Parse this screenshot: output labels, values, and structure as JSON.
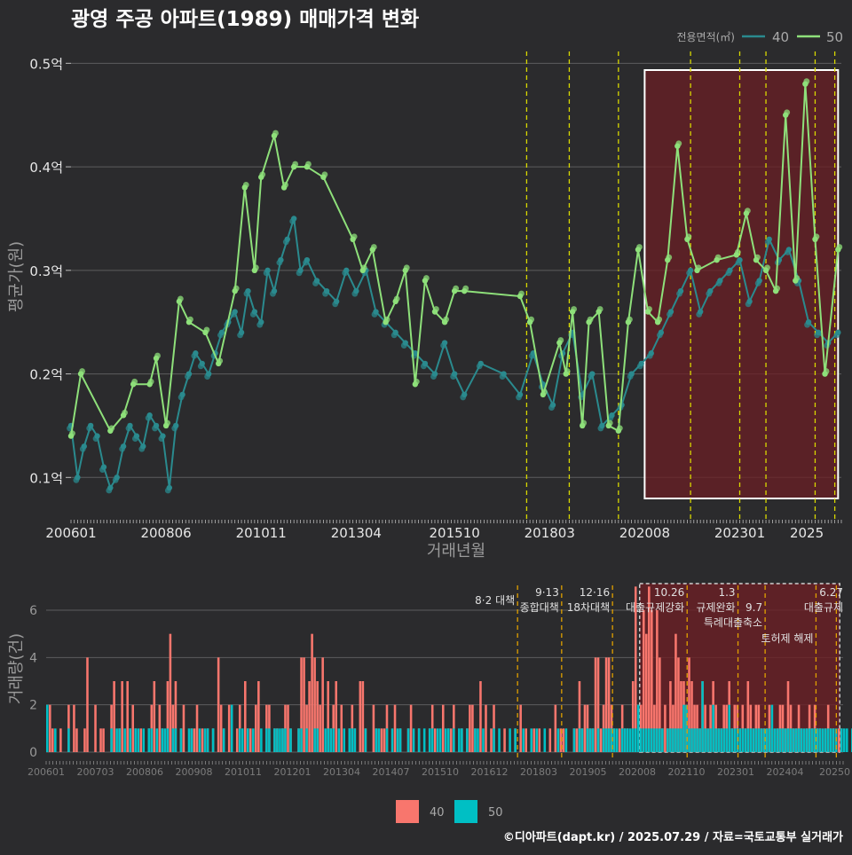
{
  "title": "광영 주공 아파트(1989) 매매가격 변화",
  "footer": "©디아파트(dapt.kr) / 2025.07.29 / 자료=국토교통부 실거래가",
  "colors": {
    "background": "#2b2b2d",
    "series_40": "#2a8a8e",
    "series_50": "#8ee07a",
    "bar_40": "#f8766d",
    "bar_50": "#00bfc4",
    "policy_line": "#d8d800",
    "policy_line_bottom": "#e0a000",
    "highlight_fill": "#6b1f24",
    "highlight_border": "#ffffff"
  },
  "chart_data": [
    {
      "id": "price",
      "type": "line",
      "title": "광영 주공 아파트(1989) 매매가격 변화",
      "xlabel": "거래년월",
      "ylabel": "평균가(원)",
      "legend": {
        "title": "전용면적(㎡)",
        "position": "top-right",
        "items": [
          "40",
          "50"
        ]
      },
      "x_ticks": [
        "200601",
        "200806",
        "201011",
        "201304",
        "201510",
        "201803",
        "202008",
        "202301",
        "2025"
      ],
      "y_ticks": [
        "0.1억",
        "0.2억",
        "0.3억",
        "0.4억",
        "0.5억"
      ],
      "y_tick_values": [
        0.1,
        0.2,
        0.3,
        0.4,
        0.5
      ],
      "ylim": [
        0.06,
        0.52
      ],
      "xlim": [
        "2006-01",
        "2025-08"
      ],
      "grid": true,
      "policy_dates": [
        "2017-08",
        "2018-09",
        "2019-12",
        "2021-10",
        "2023-01",
        "2023-09",
        "2024-12",
        "2025-06"
      ],
      "highlight_range": [
        "2020-08",
        "2025-07"
      ],
      "series": [
        {
          "name": "40",
          "x": [
            "2006-01",
            "2006-03",
            "2006-05",
            "2006-07",
            "2006-09",
            "2006-11",
            "2007-01",
            "2007-03",
            "2007-05",
            "2007-07",
            "2007-09",
            "2007-11",
            "2008-01",
            "2008-03",
            "2008-05",
            "2008-07",
            "2008-09",
            "2008-11",
            "2009-01",
            "2009-03",
            "2009-05",
            "2009-07",
            "2009-09",
            "2009-11",
            "2010-01",
            "2010-03",
            "2010-05",
            "2010-07",
            "2010-09",
            "2010-11",
            "2011-01",
            "2011-03",
            "2011-05",
            "2011-07",
            "2011-09",
            "2011-11",
            "2012-01",
            "2012-04",
            "2012-07",
            "2012-10",
            "2013-01",
            "2013-04",
            "2013-07",
            "2013-10",
            "2014-01",
            "2014-04",
            "2014-07",
            "2014-10",
            "2015-01",
            "2015-04",
            "2015-07",
            "2015-10",
            "2016-01",
            "2016-06",
            "2017-01",
            "2017-06",
            "2017-10",
            "2018-01",
            "2018-04",
            "2018-07",
            "2018-10",
            "2019-01",
            "2019-04",
            "2019-07",
            "2019-10",
            "2020-01",
            "2020-04",
            "2020-07",
            "2020-10",
            "2021-01",
            "2021-04",
            "2021-07",
            "2021-10",
            "2022-01",
            "2022-04",
            "2022-07",
            "2022-10",
            "2023-01",
            "2023-04",
            "2023-07",
            "2023-10",
            "2024-01",
            "2024-04",
            "2024-07",
            "2024-10",
            "2025-01",
            "2025-04",
            "2025-07"
          ],
          "values": [
            0.15,
            0.1,
            0.13,
            0.15,
            0.14,
            0.11,
            0.09,
            0.1,
            0.13,
            0.15,
            0.14,
            0.13,
            0.16,
            0.15,
            0.14,
            0.09,
            0.15,
            0.18,
            0.2,
            0.22,
            0.21,
            0.2,
            0.22,
            0.24,
            0.25,
            0.26,
            0.24,
            0.28,
            0.26,
            0.25,
            0.3,
            0.28,
            0.31,
            0.33,
            0.35,
            0.3,
            0.31,
            0.29,
            0.28,
            0.27,
            0.3,
            0.28,
            0.3,
            0.26,
            0.25,
            0.24,
            0.23,
            0.22,
            0.21,
            0.2,
            0.23,
            0.2,
            0.18,
            0.21,
            0.2,
            0.18,
            0.22,
            0.19,
            0.17,
            0.22,
            0.24,
            0.18,
            0.2,
            0.15,
            0.16,
            0.17,
            0.2,
            0.21,
            0.22,
            0.24,
            0.26,
            0.28,
            0.3,
            0.26,
            0.28,
            0.29,
            0.3,
            0.31,
            0.27,
            0.29,
            0.33,
            0.31,
            0.32,
            0.29,
            0.25,
            0.24,
            0.23,
            0.24
          ]
        },
        {
          "name": "50",
          "x": [
            "2006-01",
            "2006-04",
            "2007-01",
            "2007-05",
            "2007-08",
            "2008-01",
            "2008-03",
            "2008-06",
            "2008-10",
            "2009-01",
            "2009-06",
            "2009-10",
            "2010-03",
            "2010-06",
            "2010-09",
            "2010-11",
            "2011-03",
            "2011-06",
            "2011-09",
            "2012-01",
            "2012-06",
            "2013-03",
            "2013-06",
            "2013-09",
            "2014-01",
            "2014-04",
            "2014-07",
            "2014-10",
            "2015-01",
            "2015-04",
            "2015-07",
            "2015-10",
            "2016-01",
            "2017-06",
            "2017-09",
            "2018-01",
            "2018-06",
            "2018-08",
            "2018-10",
            "2019-01",
            "2019-03",
            "2019-06",
            "2019-09",
            "2019-12",
            "2020-03",
            "2020-06",
            "2020-09",
            "2020-12",
            "2021-03",
            "2021-06",
            "2021-09",
            "2021-12",
            "2022-06",
            "2022-12",
            "2023-03",
            "2023-06",
            "2023-09",
            "2023-12",
            "2024-03",
            "2024-06",
            "2024-09",
            "2024-12",
            "2025-03",
            "2025-07"
          ],
          "values": [
            0.14,
            0.2,
            0.145,
            0.16,
            0.19,
            0.19,
            0.215,
            0.15,
            0.27,
            0.25,
            0.24,
            0.21,
            0.28,
            0.38,
            0.3,
            0.39,
            0.43,
            0.38,
            0.4,
            0.4,
            0.39,
            0.33,
            0.3,
            0.32,
            0.25,
            0.27,
            0.3,
            0.19,
            0.29,
            0.26,
            0.25,
            0.28,
            0.28,
            0.275,
            0.25,
            0.18,
            0.23,
            0.2,
            0.26,
            0.15,
            0.25,
            0.26,
            0.15,
            0.145,
            0.25,
            0.32,
            0.26,
            0.25,
            0.31,
            0.42,
            0.33,
            0.3,
            0.31,
            0.315,
            0.355,
            0.31,
            0.3,
            0.28,
            0.45,
            0.29,
            0.48,
            0.33,
            0.2,
            0.32
          ]
        }
      ]
    },
    {
      "id": "volume",
      "type": "bar",
      "ylabel": "거래량(건)",
      "y_ticks": [
        "0",
        "2",
        "4",
        "6"
      ],
      "y_tick_values": [
        0,
        2,
        4,
        6
      ],
      "ylim": [
        -0.3,
        7.2
      ],
      "x_ticks": [
        "200601",
        "200703",
        "200806",
        "200908",
        "201011",
        "201201",
        "201304",
        "201407",
        "201510",
        "201612",
        "201803",
        "201905",
        "202008",
        "202110",
        "202301",
        "202404",
        "20250"
      ],
      "highlight_range": [
        "2020-08",
        "2025-07"
      ],
      "legend": {
        "position": "bottom",
        "items": [
          "40",
          "50"
        ]
      },
      "series": [
        {
          "name": "40",
          "values": [
            0,
            2,
            1,
            0,
            0,
            1,
            0,
            0,
            2,
            0,
            2,
            1,
            0,
            0,
            1,
            4,
            0,
            0,
            2,
            0,
            1,
            1,
            0,
            0,
            2,
            3,
            0,
            1,
            3,
            0,
            3,
            1,
            2,
            1,
            0,
            1,
            0,
            0,
            1,
            2,
            3,
            0,
            2,
            1,
            0,
            3,
            5,
            2,
            3,
            0,
            1,
            2,
            0,
            0,
            1,
            1,
            2,
            0,
            1,
            0,
            1,
            0,
            1,
            0,
            4,
            2,
            1,
            0,
            2,
            0,
            0,
            1,
            2,
            0,
            3,
            1,
            1,
            0,
            2,
            3,
            0,
            0,
            2,
            2,
            0,
            1,
            1,
            0,
            1,
            2,
            2,
            1,
            0,
            0,
            1,
            4,
            4,
            2,
            3,
            5,
            4,
            3,
            2,
            4,
            0,
            3,
            1,
            2,
            3,
            0,
            2,
            0,
            0,
            1,
            2,
            1,
            0,
            3,
            3,
            1,
            0,
            0,
            2,
            1,
            0,
            1,
            1,
            2,
            0,
            0,
            2,
            0,
            1,
            0,
            0,
            1,
            2,
            0,
            0,
            1,
            0,
            0,
            0,
            1,
            2,
            1,
            0,
            0,
            2,
            0,
            1,
            1,
            2,
            0,
            0,
            1,
            0,
            1,
            2,
            2,
            1,
            0,
            3,
            0,
            2,
            0,
            1,
            2,
            0,
            0,
            0,
            1,
            0,
            0,
            0,
            1,
            0,
            2,
            0,
            1,
            0,
            0,
            1,
            0,
            1,
            0,
            0,
            0,
            1,
            0,
            2,
            0,
            1,
            1,
            0,
            0,
            0,
            1,
            1,
            3,
            1,
            2,
            2,
            1,
            1,
            4,
            4,
            1,
            2,
            4,
            4,
            2,
            1,
            0,
            1,
            2,
            1,
            1,
            0,
            3,
            7,
            1,
            2,
            6,
            5,
            7,
            6,
            2,
            6,
            4,
            1,
            2,
            1,
            3,
            2,
            5,
            4,
            3,
            3,
            2,
            4,
            3,
            2,
            2,
            1,
            3,
            2,
            1,
            2,
            3,
            2,
            1,
            1,
            2,
            2,
            3,
            1,
            2,
            2,
            1,
            2,
            1,
            3,
            2,
            1,
            2,
            2,
            1,
            1,
            1,
            2,
            1,
            0,
            1,
            2,
            2,
            1,
            3,
            2,
            1,
            1,
            2,
            1,
            0,
            1,
            2,
            1,
            2,
            1,
            1,
            0,
            1,
            2,
            1,
            1,
            0,
            1,
            1
          ]
        },
        {
          "name": "50",
          "values": [
            2,
            0,
            0,
            1,
            0,
            0,
            0,
            0,
            1,
            0,
            0,
            0,
            0,
            0,
            0,
            0,
            0,
            0,
            0,
            0,
            0,
            0,
            0,
            0,
            1,
            0,
            1,
            1,
            0,
            1,
            0,
            1,
            0,
            1,
            1,
            0,
            1,
            0,
            1,
            1,
            0,
            1,
            0,
            1,
            1,
            1,
            0,
            1,
            1,
            0,
            1,
            0,
            0,
            1,
            1,
            0,
            0,
            1,
            0,
            1,
            1,
            0,
            1,
            0,
            0,
            0,
            1,
            0,
            0,
            2,
            0,
            0,
            1,
            1,
            0,
            1,
            0,
            1,
            0,
            0,
            1,
            0,
            1,
            1,
            0,
            1,
            1,
            1,
            1,
            1,
            0,
            1,
            0,
            0,
            1,
            1,
            0,
            1,
            0,
            0,
            1,
            1,
            0,
            0,
            1,
            1,
            1,
            1,
            0,
            1,
            0,
            1,
            0,
            1,
            1,
            1,
            0,
            0,
            0,
            1,
            0,
            0,
            0,
            1,
            1,
            0,
            0,
            1,
            0,
            1,
            0,
            1,
            1,
            0,
            0,
            1,
            0,
            1,
            0,
            1,
            0,
            1,
            0,
            1,
            1,
            0,
            1,
            1,
            0,
            1,
            1,
            0,
            1,
            0,
            1,
            1,
            0,
            1,
            0,
            0,
            1,
            1,
            0,
            1,
            0,
            0,
            0,
            1,
            0,
            1,
            0,
            0,
            0,
            1,
            0,
            1,
            0,
            0,
            1,
            0,
            0,
            1,
            0,
            1,
            0,
            0,
            1,
            0,
            0,
            0,
            0,
            1,
            0,
            0,
            1,
            0,
            0,
            1,
            0,
            1,
            1,
            0,
            1,
            1,
            1,
            0,
            1,
            0,
            1,
            1,
            1,
            1,
            1,
            1,
            0,
            1,
            1,
            1,
            1,
            1,
            1,
            2,
            1,
            1,
            1,
            1,
            1,
            1,
            1,
            1,
            1,
            0,
            1,
            1,
            1,
            1,
            1,
            1,
            2,
            2,
            1,
            1,
            1,
            1,
            1,
            3,
            1,
            1,
            1,
            2,
            1,
            1,
            1,
            1,
            1,
            2,
            1,
            1,
            1,
            1,
            1,
            1,
            1,
            1,
            1,
            1,
            1,
            1,
            1,
            1,
            1,
            2,
            1,
            1,
            1,
            1,
            1,
            1,
            1,
            1,
            1,
            1,
            1,
            1,
            1,
            1,
            1,
            1,
            1,
            1,
            1,
            1,
            1,
            1,
            1,
            1,
            0,
            1,
            1,
            1,
            0,
            1,
            1,
            0,
            1,
            0,
            1,
            0
          ]
        }
      ],
      "annotations": [
        {
          "date": "2017-08",
          "lines": [
            "8·2 대책"
          ]
        },
        {
          "date": "2018-09",
          "lines": [
            "9·13",
            "종합대책"
          ]
        },
        {
          "date": "2019-12",
          "lines": [
            "12·16",
            "18차대책"
          ]
        },
        {
          "date": "2021-10",
          "lines": [
            "10.26",
            "대출규제강화"
          ]
        },
        {
          "date": "2023-01",
          "lines": [
            "1.3",
            "규제완화"
          ]
        },
        {
          "date": "2023-09",
          "lines": [
            "9.7",
            "특례대출축소"
          ]
        },
        {
          "date": "2024-12",
          "lines": [
            "",
            "토허제 해제"
          ]
        },
        {
          "date": "2025-06",
          "lines": [
            "6.27",
            "대출규제"
          ]
        }
      ]
    }
  ]
}
